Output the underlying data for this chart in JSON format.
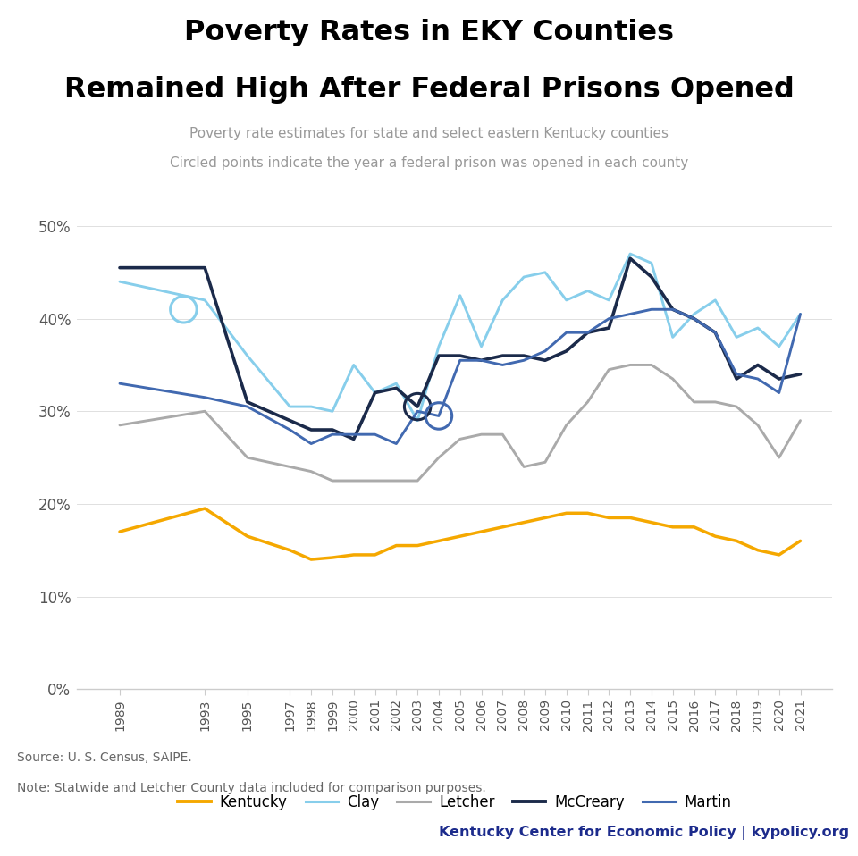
{
  "title_line1": "Poverty Rates in EKY Counties",
  "title_line2": "Remained High After Federal Prisons Opened",
  "subtitle_line1": "Poverty rate estimates for state and select eastern Kentucky counties",
  "subtitle_line2": "Circled points indicate the year a federal prison was opened in each county",
  "source_line1": "Source: U. S. Census, SAIPE.",
  "source_line2": "Note: Statwide and Letcher County data included for comparison purposes.",
  "branding_bold": "Kentucky Center for Economic Policy",
  "branding_sep": " | ",
  "branding_normal": "kypolicy.org",
  "years": [
    1989,
    1993,
    1995,
    1997,
    1998,
    1999,
    2000,
    2001,
    2002,
    2003,
    2004,
    2005,
    2006,
    2007,
    2008,
    2009,
    2010,
    2011,
    2012,
    2013,
    2014,
    2015,
    2016,
    2017,
    2018,
    2019,
    2020,
    2021
  ],
  "kentucky": [
    17.0,
    19.5,
    16.5,
    15.0,
    14.0,
    14.2,
    14.5,
    14.5,
    15.5,
    15.5,
    16.0,
    16.5,
    17.0,
    17.5,
    18.0,
    18.5,
    19.0,
    19.0,
    18.5,
    18.5,
    18.0,
    17.5,
    17.5,
    16.5,
    16.0,
    15.0,
    14.5,
    16.0
  ],
  "clay": [
    44.0,
    42.0,
    36.0,
    30.5,
    30.5,
    30.0,
    35.0,
    32.0,
    33.0,
    29.0,
    37.0,
    42.5,
    37.0,
    42.0,
    44.5,
    45.0,
    42.0,
    43.0,
    42.0,
    47.0,
    46.0,
    38.0,
    40.5,
    42.0,
    38.0,
    39.0,
    37.0,
    40.5
  ],
  "letcher": [
    28.5,
    30.0,
    25.0,
    24.0,
    23.5,
    22.5,
    22.5,
    22.5,
    22.5,
    22.5,
    25.0,
    27.0,
    27.5,
    27.5,
    24.0,
    24.5,
    28.5,
    31.0,
    34.5,
    35.0,
    35.0,
    33.5,
    31.0,
    31.0,
    30.5,
    28.5,
    25.0,
    29.0
  ],
  "mccreary": [
    45.5,
    45.5,
    31.0,
    29.0,
    28.0,
    28.0,
    27.0,
    32.0,
    32.5,
    30.5,
    36.0,
    36.0,
    35.5,
    36.0,
    36.0,
    35.5,
    36.5,
    38.5,
    39.0,
    46.5,
    44.5,
    41.0,
    40.0,
    38.5,
    33.5,
    35.0,
    33.5,
    34.0
  ],
  "martin": [
    33.0,
    31.5,
    30.5,
    28.0,
    26.5,
    27.5,
    27.5,
    27.5,
    26.5,
    30.0,
    29.5,
    35.5,
    35.5,
    35.0,
    35.5,
    36.5,
    38.5,
    38.5,
    40.0,
    40.5,
    41.0,
    41.0,
    40.0,
    38.5,
    34.0,
    33.5,
    32.0,
    40.5
  ],
  "clay_circle_year": 1992,
  "clay_circle_value": 41.0,
  "mccreary_circle_year": 2003,
  "martin_circle_year": 2004,
  "colors_kentucky": "#F5A800",
  "colors_clay": "#87CEEB",
  "colors_letcher": "#AAAAAA",
  "colors_mccreary": "#1B2A4A",
  "colors_martin": "#4169B0",
  "colors_background": "#FFFFFF",
  "colors_header_bg": "#DEDEDE",
  "colors_subtitle": "#999999",
  "colors_branding_bg": "#D8D8D8",
  "colors_branding": "#1C2B8C",
  "colors_axis": "#CCCCCC",
  "colors_source": "#666666",
  "title_fontsize": 23,
  "subtitle_fontsize": 11,
  "yticks": [
    0,
    10,
    20,
    30,
    40,
    50
  ],
  "ytick_labels": [
    "0%",
    "10%",
    "20%",
    "30%",
    "40%",
    "50%"
  ]
}
